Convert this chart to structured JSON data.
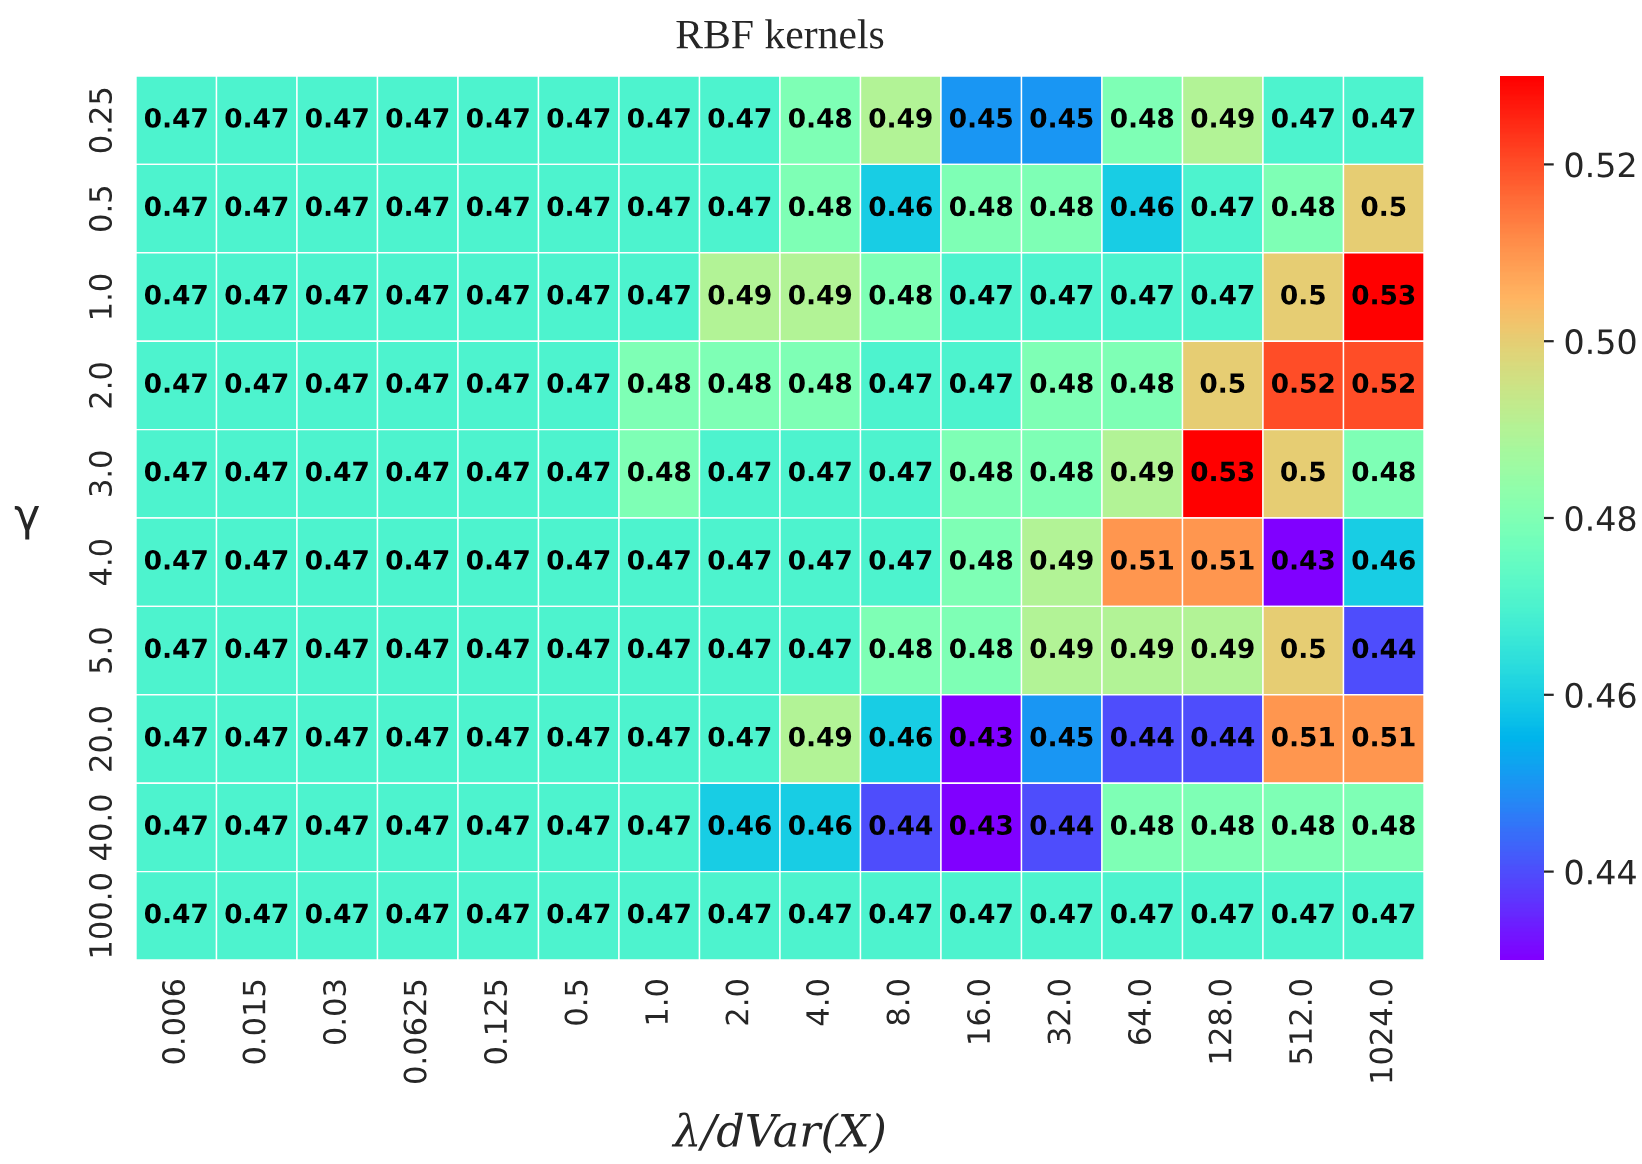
{
  "chart_data": {
    "type": "heatmap",
    "title": "RBF kernels",
    "xlabel": "λ/dVar(X)",
    "ylabel": "γ",
    "categories": [
      "0.006",
      "0.015",
      "0.03",
      "0.0625",
      "0.125",
      "0.5",
      "1.0",
      "2.0",
      "4.0",
      "8.0",
      "16.0",
      "32.0",
      "64.0",
      "128.0",
      "512.0",
      "1024.0"
    ],
    "y_categories": [
      "0.25",
      "0.5",
      "1.0",
      "2.0",
      "3.0",
      "4.0",
      "5.0",
      "20.0",
      "40.0",
      "100.0"
    ],
    "cells": [
      [
        0.47,
        0.47,
        0.47,
        0.47,
        0.47,
        0.47,
        0.47,
        0.47,
        0.48,
        0.49,
        0.45,
        0.45,
        0.48,
        0.49,
        0.47,
        0.47
      ],
      [
        0.47,
        0.47,
        0.47,
        0.47,
        0.47,
        0.47,
        0.47,
        0.47,
        0.48,
        0.46,
        0.48,
        0.48,
        0.46,
        0.47,
        0.48,
        0.5
      ],
      [
        0.47,
        0.47,
        0.47,
        0.47,
        0.47,
        0.47,
        0.47,
        0.49,
        0.49,
        0.48,
        0.47,
        0.47,
        0.47,
        0.47,
        0.5,
        0.53
      ],
      [
        0.47,
        0.47,
        0.47,
        0.47,
        0.47,
        0.47,
        0.48,
        0.48,
        0.48,
        0.47,
        0.47,
        0.48,
        0.48,
        0.5,
        0.52,
        0.52
      ],
      [
        0.47,
        0.47,
        0.47,
        0.47,
        0.47,
        0.47,
        0.48,
        0.47,
        0.47,
        0.47,
        0.48,
        0.48,
        0.49,
        0.53,
        0.5,
        0.48
      ],
      [
        0.47,
        0.47,
        0.47,
        0.47,
        0.47,
        0.47,
        0.47,
        0.47,
        0.47,
        0.47,
        0.48,
        0.49,
        0.51,
        0.51,
        0.43,
        0.46
      ],
      [
        0.47,
        0.47,
        0.47,
        0.47,
        0.47,
        0.47,
        0.47,
        0.47,
        0.47,
        0.48,
        0.48,
        0.49,
        0.49,
        0.49,
        0.5,
        0.44
      ],
      [
        0.47,
        0.47,
        0.47,
        0.47,
        0.47,
        0.47,
        0.47,
        0.47,
        0.49,
        0.46,
        0.43,
        0.45,
        0.44,
        0.44,
        0.51,
        0.51
      ],
      [
        0.47,
        0.47,
        0.47,
        0.47,
        0.47,
        0.47,
        0.47,
        0.46,
        0.46,
        0.44,
        0.43,
        0.44,
        0.48,
        0.48,
        0.48,
        0.48
      ],
      [
        0.47,
        0.47,
        0.47,
        0.47,
        0.47,
        0.47,
        0.47,
        0.47,
        0.47,
        0.47,
        0.47,
        0.47,
        0.47,
        0.47,
        0.47,
        0.47
      ]
    ],
    "data_labels": true,
    "clim": [
      0.43,
      0.53
    ],
    "cticks": [
      0.44,
      0.46,
      0.48,
      {
        "value": 0.5,
        "label": "0.50"
      },
      0.52
    ]
  }
}
